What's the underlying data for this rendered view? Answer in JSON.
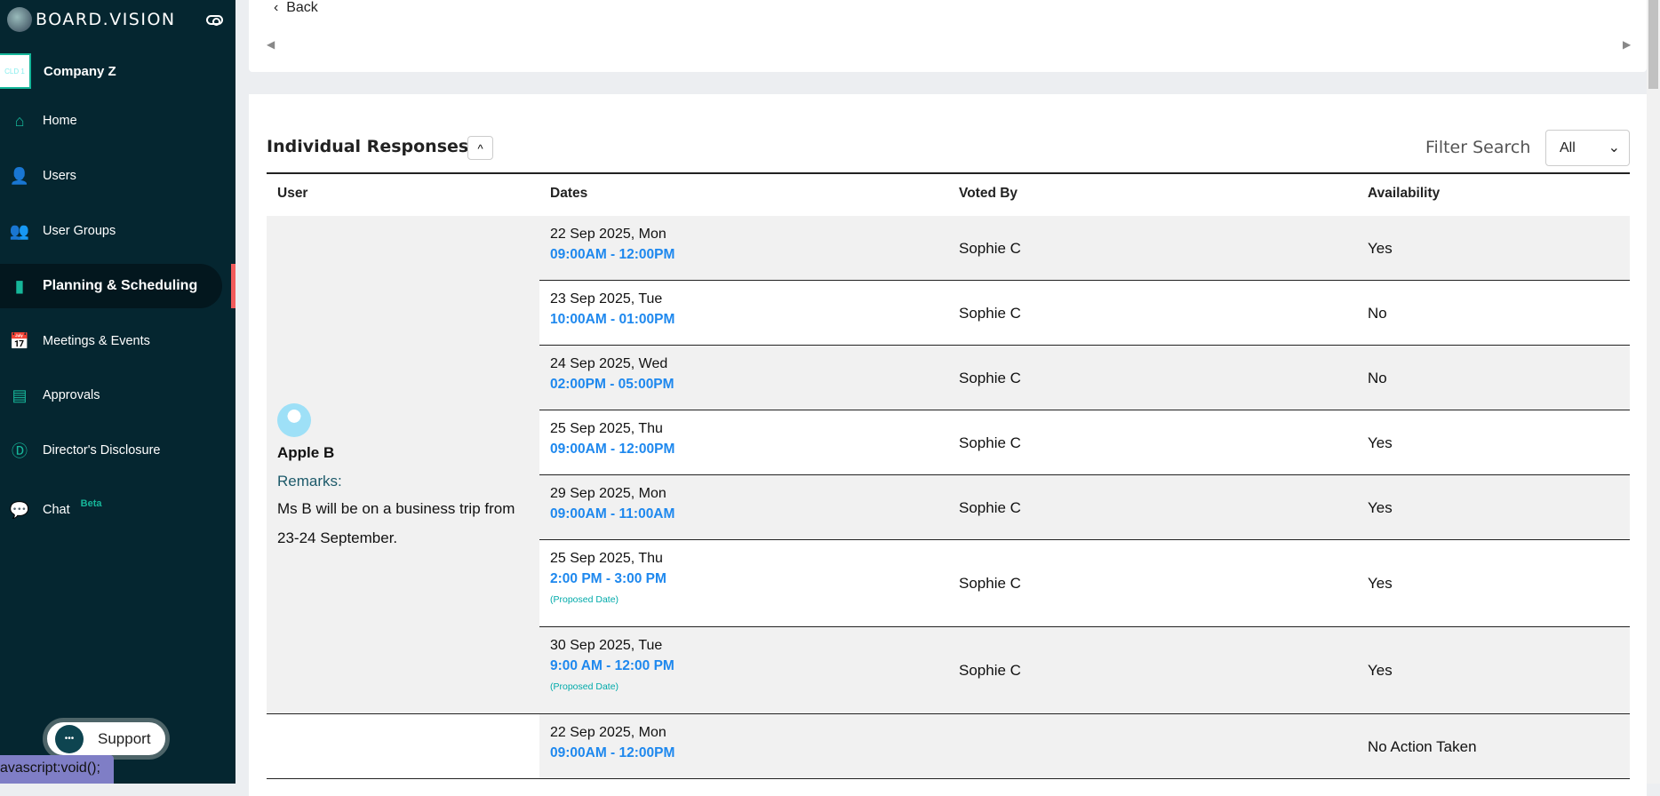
{
  "brand": {
    "name": "BOARD.VISION"
  },
  "company": {
    "badge": "CLD 1",
    "name": "Company Z"
  },
  "nav": [
    {
      "label": "Home",
      "icon": "home-icon",
      "glyph": "⌂"
    },
    {
      "label": "Users",
      "icon": "user-icon",
      "glyph": "👤"
    },
    {
      "label": "User Groups",
      "icon": "user-group-icon",
      "glyph": "👥"
    },
    {
      "label": "Planning & Scheduling",
      "icon": "bar-chart-icon",
      "glyph": "▮",
      "active": true
    },
    {
      "label": "Meetings & Events",
      "icon": "calendar-check-icon",
      "glyph": "📅"
    },
    {
      "label": "Approvals",
      "icon": "document-icon",
      "glyph": "▤"
    },
    {
      "label": "Director's Disclosure",
      "icon": "d-circle-icon",
      "glyph": "Ⓓ"
    },
    {
      "label": "Chat",
      "icon": "chat-icon",
      "glyph": "💬",
      "badge": "Beta"
    }
  ],
  "support": {
    "label": "Support"
  },
  "status_tooltip": "avascript:void();",
  "top": {
    "back": "Back"
  },
  "section": {
    "title": "Individual Responses",
    "filter_label": "Filter Search",
    "filter_value": "All"
  },
  "columns": [
    "User",
    "Dates",
    "Voted By",
    "Availability"
  ],
  "users": [
    {
      "name": "Apple B",
      "remarks_label": "Remarks:",
      "remarks": "Ms B will be on a business trip from 23-24 September.",
      "rows": [
        {
          "date": "22 Sep 2025, Mon",
          "time": "09:00AM - 12:00PM",
          "voted_by": "Sophie C",
          "availability": "Yes"
        },
        {
          "date": "23 Sep 2025, Tue",
          "time": "10:00AM - 01:00PM",
          "voted_by": "Sophie C",
          "availability": "No"
        },
        {
          "date": "24 Sep 2025, Wed",
          "time": "02:00PM - 05:00PM",
          "voted_by": "Sophie C",
          "availability": "No"
        },
        {
          "date": "25 Sep 2025, Thu",
          "time": "09:00AM - 12:00PM",
          "voted_by": "Sophie C",
          "availability": "Yes"
        },
        {
          "date": "29 Sep 2025, Mon",
          "time": "09:00AM - 11:00AM",
          "voted_by": "Sophie C",
          "availability": "Yes"
        },
        {
          "date": "25 Sep 2025, Thu",
          "time": "2:00 PM - 3:00 PM",
          "note": "(Proposed Date)",
          "voted_by": "Sophie C",
          "availability": "Yes"
        },
        {
          "date": "30 Sep 2025, Tue",
          "time": "9:00 AM - 12:00 PM",
          "note": "(Proposed Date)",
          "voted_by": "Sophie C",
          "availability": "Yes"
        }
      ]
    },
    {
      "name": "",
      "rows": [
        {
          "date": "22 Sep 2025, Mon",
          "time": "09:00AM - 12:00PM",
          "voted_by": "",
          "availability": "No Action Taken"
        }
      ]
    }
  ]
}
